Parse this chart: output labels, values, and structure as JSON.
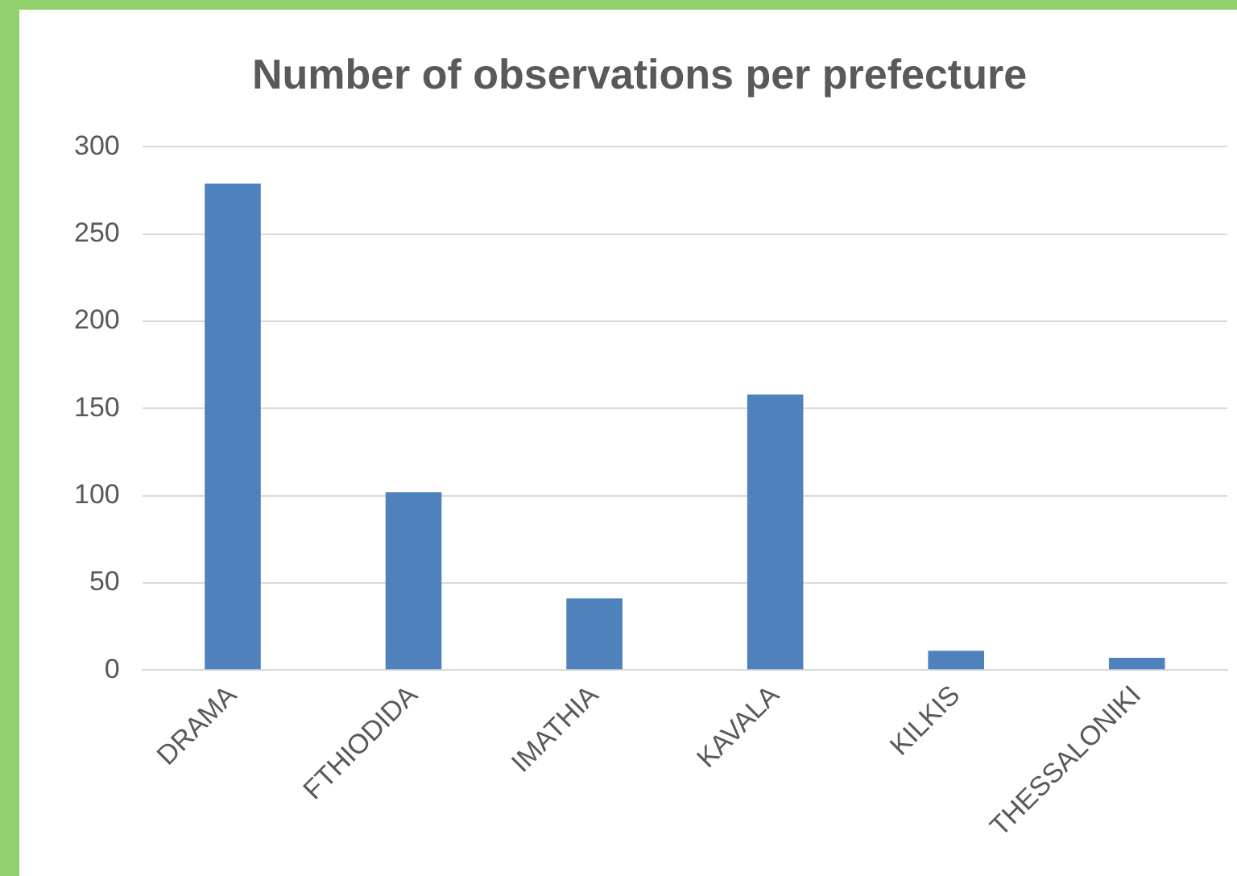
{
  "chart_data": {
    "type": "bar",
    "title": "Number of observations per prefecture",
    "categories": [
      "DRAMA",
      "FTHIODIDA",
      "IMATHIA",
      "KAVALA",
      "KILKIS",
      "THESSALONIKI"
    ],
    "values": [
      279,
      102,
      41,
      158,
      11,
      7
    ],
    "color": "#4f81bd",
    "ylim": [
      0,
      300
    ],
    "yticks": [
      0,
      50,
      100,
      150,
      200,
      250,
      300
    ],
    "grid": "y"
  }
}
